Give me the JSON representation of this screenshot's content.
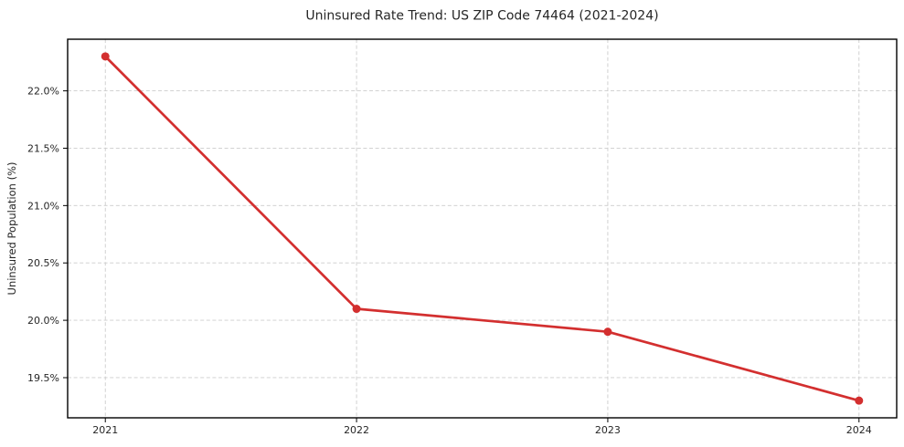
{
  "figure": {
    "background": "#ffffff"
  },
  "chart_data": {
    "type": "line",
    "title": "Uninsured Rate Trend: US ZIP Code 74464 (2021-2024)",
    "xlabel": "",
    "ylabel": "Uninsured Population (%)",
    "x": [
      2021,
      2022,
      2023,
      2024
    ],
    "x_tick_labels": [
      "2021",
      "2022",
      "2023",
      "2024"
    ],
    "values": [
      22.3,
      20.1,
      19.9,
      19.3
    ],
    "y_ticks": [
      19.5,
      20.0,
      20.5,
      21.0,
      21.5,
      22.0
    ],
    "y_tick_labels": [
      "19.5%",
      "20.0%",
      "20.5%",
      "21.0%",
      "21.5%",
      "22.0%"
    ],
    "xlim": [
      2020.85,
      2024.15
    ],
    "ylim": [
      19.15,
      22.45
    ],
    "grid": true,
    "grid_style": "dashed",
    "legend_position": "none",
    "line_color": "#d32f2f",
    "marker": "o",
    "marker_color": "#d32f2f",
    "grid_color": "#cccccc",
    "spine_color": "#000000",
    "tick_color": "#000000",
    "text_color": "#262626"
  }
}
